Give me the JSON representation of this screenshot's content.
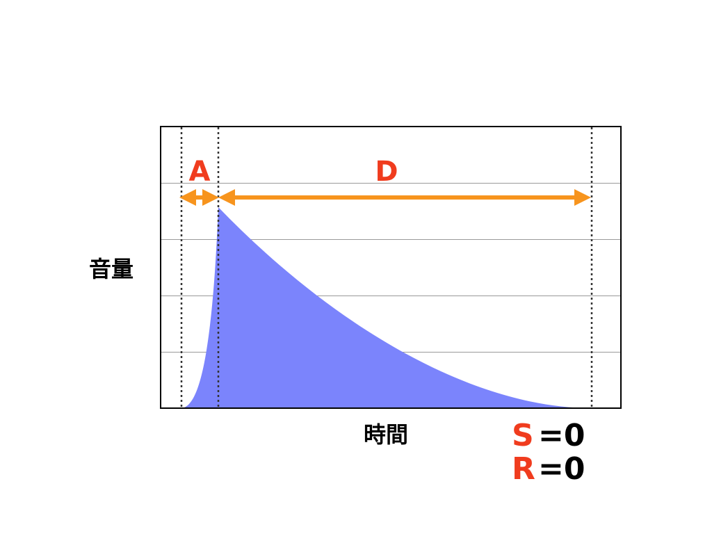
{
  "labels": {
    "attack": "A",
    "decay": "D",
    "y_axis": "音量",
    "x_axis": "時間",
    "sustain": "S",
    "sustain_value": "=0",
    "release": "R",
    "release_value": "=0"
  }
}
